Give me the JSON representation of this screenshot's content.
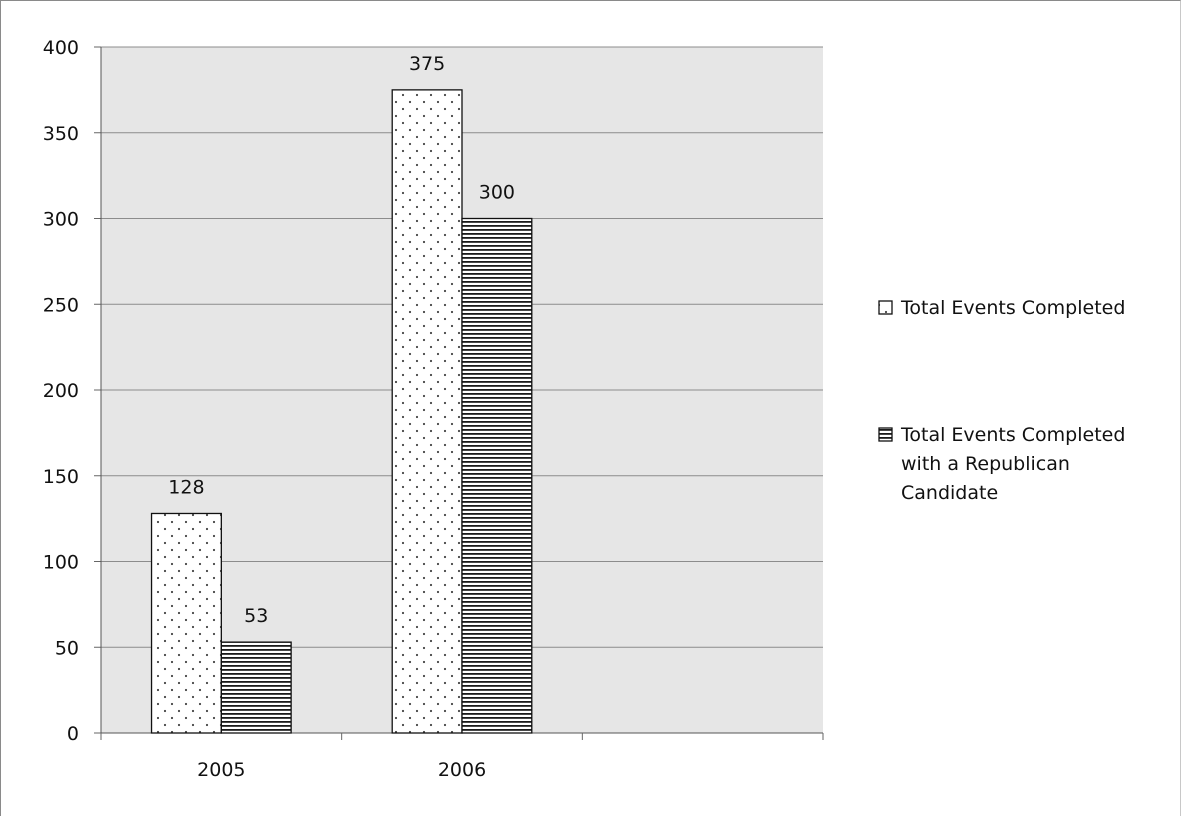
{
  "chart_data": {
    "type": "bar",
    "title": "",
    "xlabel": "",
    "ylabel": "",
    "categories": [
      "2005",
      "2006",
      ""
    ],
    "series": [
      {
        "name": "Total Events Completed",
        "values": [
          128,
          375,
          null
        ],
        "pattern": "dots",
        "legend_lines": [
          "Total Events Completed"
        ]
      },
      {
        "name": "Total Events Completed with a Republican Candidate",
        "values": [
          53,
          300,
          null
        ],
        "pattern": "horizontal-lines",
        "legend_lines": [
          "Total Events Completed",
          "with a Republican",
          "Candidate"
        ]
      }
    ],
    "ylim": [
      0,
      400
    ],
    "yticks": [
      0,
      50,
      100,
      150,
      200,
      250,
      300,
      350,
      400
    ],
    "grid": true,
    "legend_position": "right",
    "plot_background": "#e6e6e6",
    "gridline_color": "#8c8c8c"
  }
}
